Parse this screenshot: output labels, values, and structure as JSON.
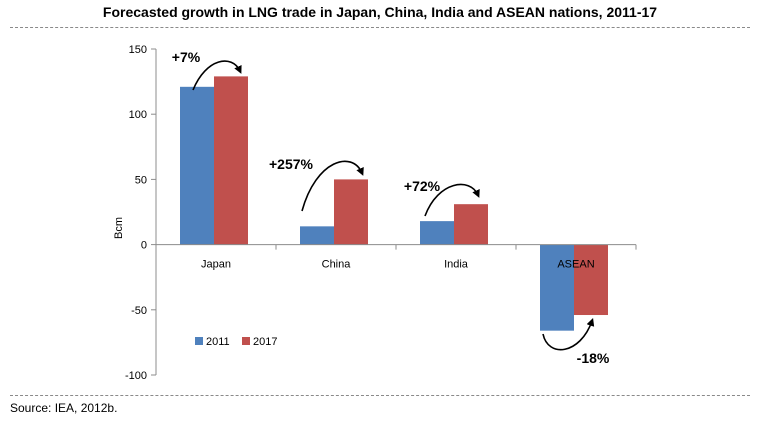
{
  "chart_data": {
    "type": "bar",
    "title": "Forecasted growth in LNG trade in Japan, China, India and ASEAN nations, 2011-17",
    "xlabel": "",
    "ylabel": "Bcm",
    "ylim": [
      -100,
      150
    ],
    "yticks": [
      150,
      100,
      50,
      0,
      -50,
      -100
    ],
    "categories": [
      "Japan",
      "China",
      "India",
      "ASEAN"
    ],
    "series": [
      {
        "name": "2011",
        "values": [
          121,
          14,
          18,
          -66
        ],
        "color": "#4f81bd"
      },
      {
        "name": "2017",
        "values": [
          129,
          50,
          31,
          -54
        ],
        "color": "#c0504d"
      }
    ],
    "annotations": [
      "+7%",
      "+257%",
      "+72%",
      "-18%"
    ],
    "legend": "inside-bottom-left",
    "grid": false
  },
  "source": "Source: IEA, 2012b."
}
